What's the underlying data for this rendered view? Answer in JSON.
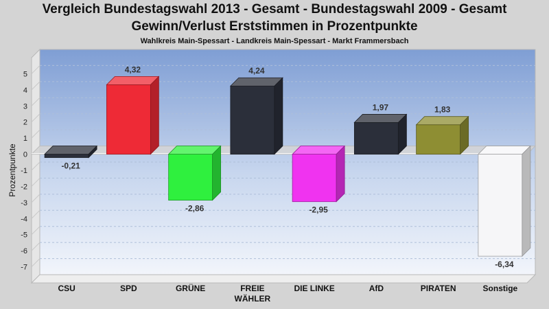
{
  "chart_data": {
    "type": "bar",
    "title": "Vergleich Bundestagswahl 2013 - Gesamt - Bundestagswahl 2009 - Gesamt",
    "subtitle": "Gewinn/Verlust Erststimmen in Prozentpunkte",
    "subtitle2": "Wahlkreis Main-Spessart - Landkreis Main-Spessart - Markt Frammersbach",
    "ylabel": "Prozentpunkte",
    "xlabel": "",
    "ylim": [
      -8,
      6
    ],
    "yticks": [
      5,
      4,
      3,
      2,
      1,
      0,
      -1,
      -2,
      -3,
      -4,
      -5,
      -6,
      -7
    ],
    "categories": [
      "CSU",
      "SPD",
      "GRÜNE",
      "FREIE WÄHLER",
      "DIE LINKE",
      "AfD",
      "PIRATEN",
      "Sonstige"
    ],
    "category_lines": [
      [
        "CSU"
      ],
      [
        "SPD"
      ],
      [
        "GRÜNE"
      ],
      [
        "FREIE",
        "WÄHLER"
      ],
      [
        "DIE LINKE"
      ],
      [
        "AfD"
      ],
      [
        "PIRATEN"
      ],
      [
        "Sonstige"
      ]
    ],
    "values": [
      -0.21,
      4.32,
      -2.86,
      4.24,
      -2.95,
      1.97,
      1.83,
      -6.34
    ],
    "value_labels": [
      "-0,21",
      "4,32",
      "-2,86",
      "4,24",
      "-2,95",
      "1,97",
      "1,83",
      "-6,34"
    ],
    "colors": [
      "#2b2f3a",
      "#ee2a36",
      "#2ff03e",
      "#2b2f3a",
      "#f033f0",
      "#2b2f3a",
      "#8e8e33",
      "#f6f6f8"
    ],
    "grid": true,
    "legend": "none"
  }
}
